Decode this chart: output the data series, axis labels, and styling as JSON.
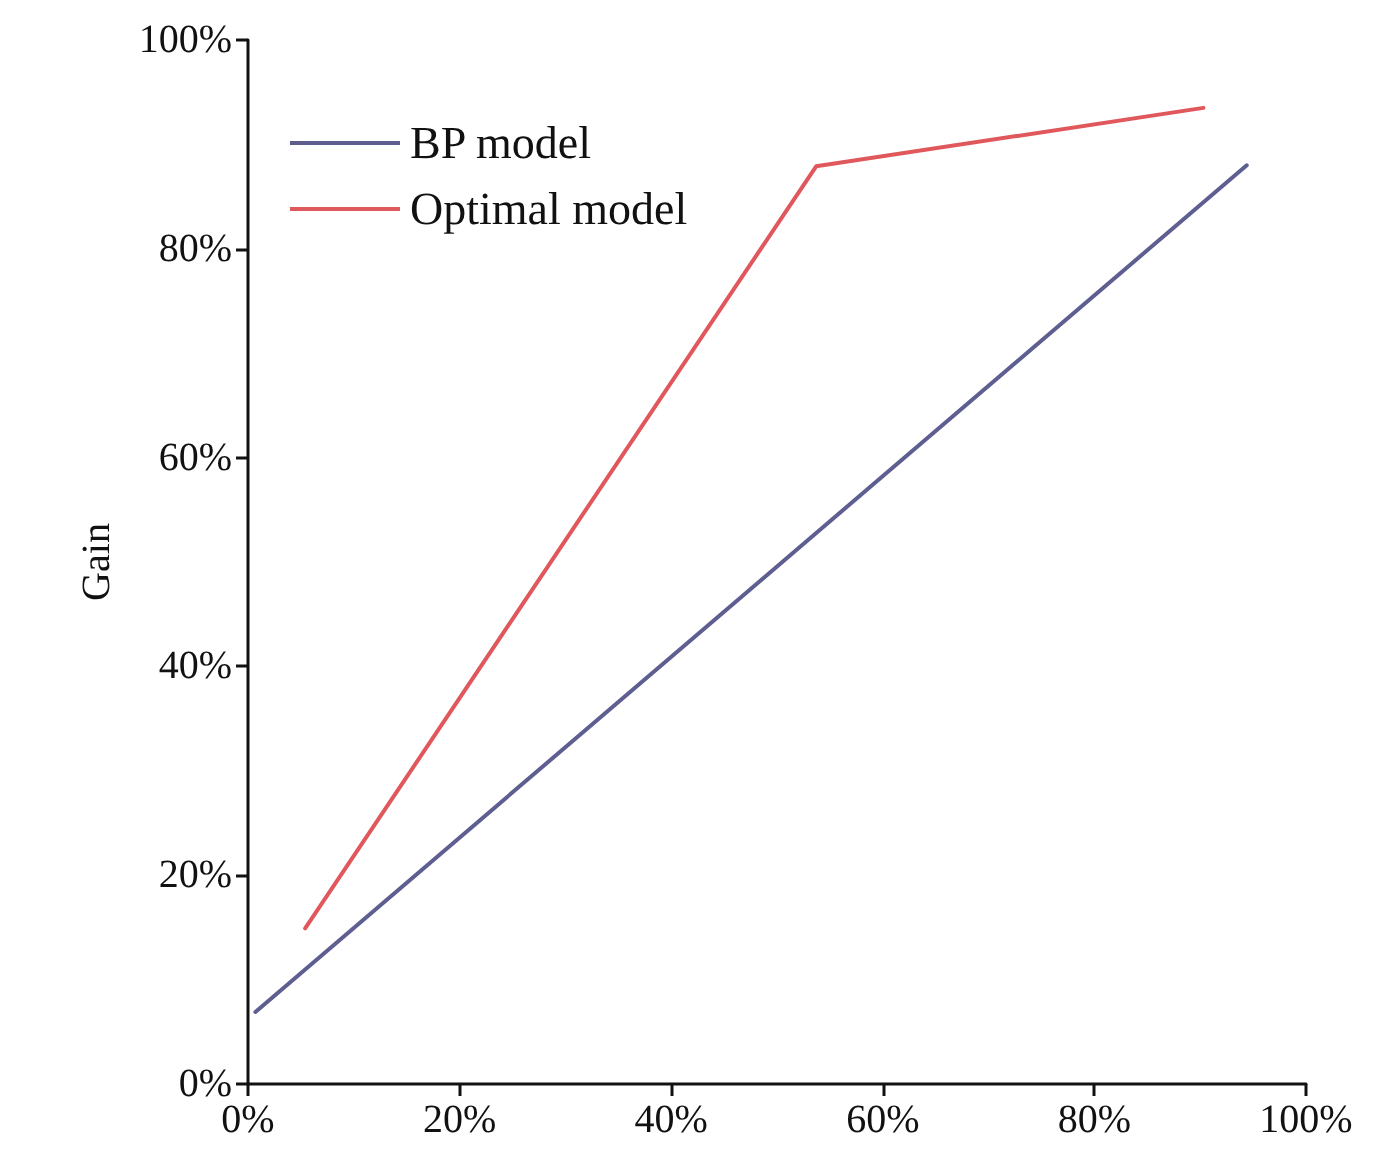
{
  "chart_data": {
    "type": "line",
    "ylabel": "Gain",
    "series": [
      {
        "name": "BP model",
        "color": "#5e5e90",
        "x": [
          0.7,
          94.4
        ],
        "values": [
          6.9,
          88.0
        ]
      },
      {
        "name": "Optimal model",
        "color": "#e0585c",
        "x": [
          5.4,
          53.7,
          90.3
        ],
        "values": [
          14.9,
          87.9,
          93.5
        ]
      }
    ],
    "xlim": [
      0,
      100
    ],
    "xticks": [
      {
        "value": 0,
        "label": "0%"
      },
      {
        "value": 20,
        "label": "20%"
      },
      {
        "value": 40,
        "label": "40%"
      },
      {
        "value": 60,
        "label": "60%"
      },
      {
        "value": 80,
        "label": "80%"
      },
      {
        "value": 100,
        "label": "100%"
      }
    ],
    "ylim": [
      0,
      100
    ],
    "yticks": [
      {
        "value": 0,
        "label": "0%"
      },
      {
        "value": 20,
        "label": "20%"
      },
      {
        "value": 40,
        "label": "40%"
      },
      {
        "value": 60,
        "label": "60%"
      },
      {
        "value": 80,
        "label": "80%"
      },
      {
        "value": 100,
        "label": "100%"
      }
    ],
    "grid": false,
    "legend": "top left",
    "marker": "none",
    "line_style": "solid"
  }
}
